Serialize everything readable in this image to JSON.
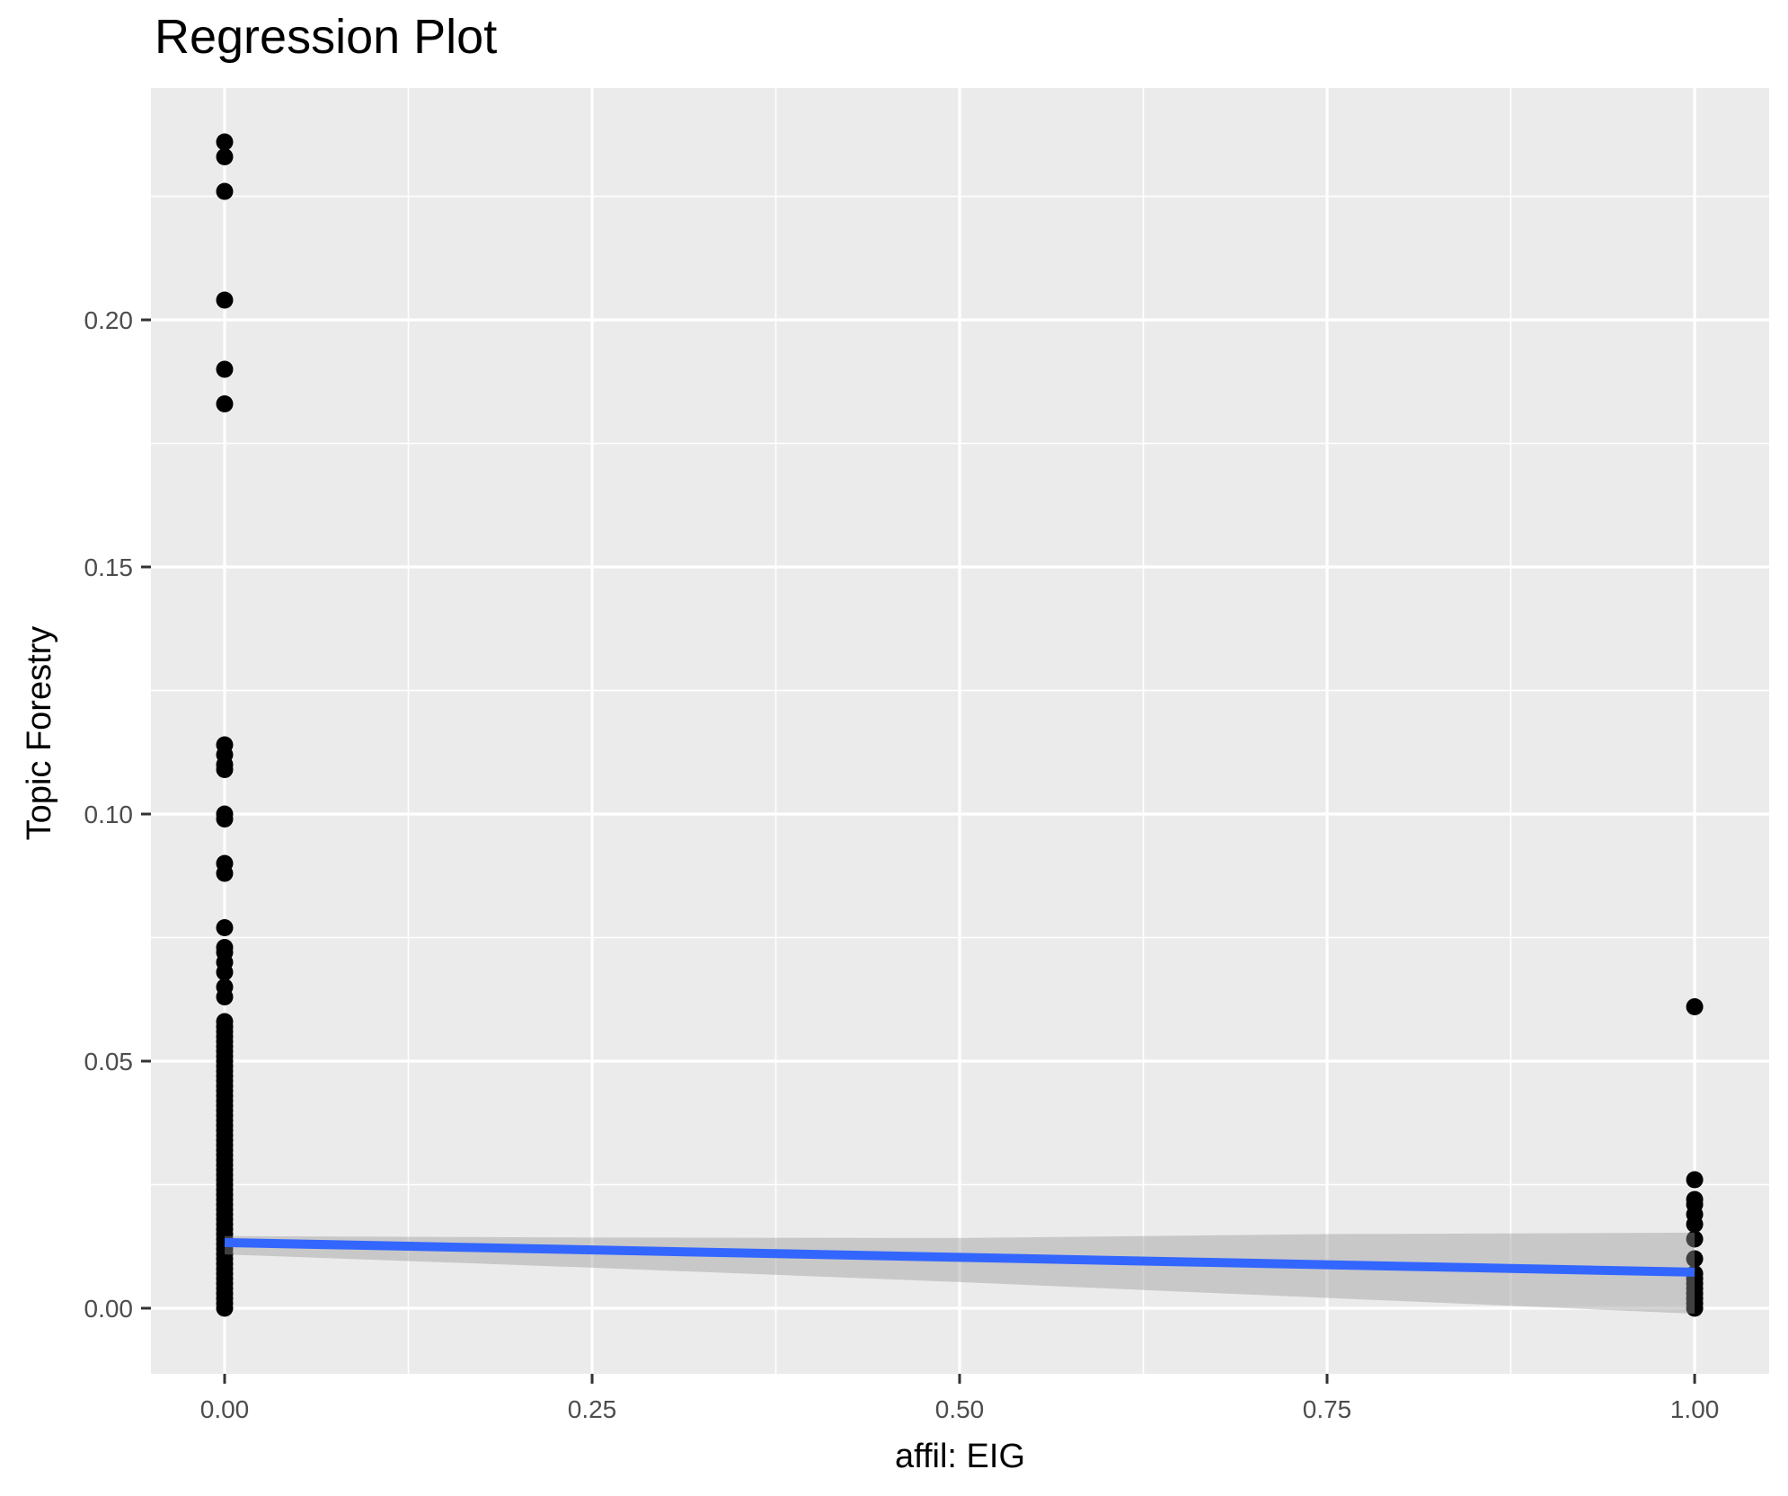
{
  "figure": {
    "title": "Regression Plot",
    "background_color": "#FFFFFF"
  },
  "chart_data": {
    "type": "scatter",
    "title": "Regression Plot",
    "xlabel": "affil: EIG",
    "ylabel": "Topic Forestry",
    "legend": "none",
    "grid": {
      "panel_background": "#EBEBEB",
      "major_color": "#FFFFFF",
      "minor_color": "#FFFFFF",
      "major_on": true,
      "minor_on": true
    },
    "xlim": [
      -0.0501,
      1.0507
    ],
    "ylim": [
      -0.01327,
      0.24691
    ],
    "x_ticks": {
      "values": [
        0,
        0.25,
        0.5,
        0.75,
        1.0
      ],
      "labels": [
        "0.00",
        "0.25",
        "0.50",
        "0.75",
        "1.00"
      ]
    },
    "y_ticks": {
      "values": [
        0,
        0.05,
        0.1,
        0.15,
        0.2
      ],
      "labels": [
        "0.00",
        "0.05",
        "0.10",
        "0.15",
        "0.20"
      ]
    },
    "x_minor": [
      0.125,
      0.375,
      0.625,
      0.875
    ],
    "y_minor": [
      0.025,
      0.075,
      0.125,
      0.175,
      0.225
    ],
    "point_color": "#000000",
    "point_groups": [
      {
        "x": 0,
        "y": [
          0.236,
          0.233,
          0.226,
          0.204,
          0.19,
          0.183,
          0.114,
          0.112,
          0.11,
          0.109,
          0.1,
          0.099,
          0.09,
          0.088,
          0.077,
          0.073,
          0.072,
          0.07,
          0.068,
          0.065,
          0.063,
          0.058,
          0.057,
          0.056,
          0.055,
          0.054,
          0.053,
          0.052,
          0.051,
          0.05,
          0.049,
          0.048,
          0.047,
          0.046,
          0.045,
          0.044,
          0.043,
          0.042,
          0.041,
          0.04,
          0.039,
          0.038,
          0.037,
          0.036,
          0.035,
          0.034,
          0.033,
          0.032,
          0.031,
          0.03,
          0.029,
          0.028,
          0.027,
          0.026,
          0.025,
          0.024,
          0.023,
          0.022,
          0.021,
          0.02,
          0.019,
          0.018,
          0.017,
          0.016,
          0.015,
          0.014,
          0.013,
          0.012,
          0.011,
          0.01,
          0.009,
          0.008,
          0.007,
          0.006,
          0.005,
          0.004,
          0.003,
          0.002,
          0.001,
          0.0
        ]
      },
      {
        "x": 1,
        "y": [
          0.061,
          0.026,
          0.022,
          0.021,
          0.019,
          0.017,
          0.014,
          0.01,
          0.007,
          0.006,
          0.005,
          0.004,
          0.003,
          0.002,
          0.001,
          0.0
        ]
      }
    ],
    "regression_line": {
      "color": "#3366FF",
      "x": [
        0,
        1
      ],
      "y": [
        0.0133,
        0.0073
      ]
    },
    "ci_ribbon": {
      "color": "rgba(153,153,153,0.42)",
      "x": [
        0,
        0.25,
        0.5,
        0.75,
        1
      ],
      "upper": [
        0.0146,
        0.0143,
        0.0142,
        0.015,
        0.0153
      ],
      "lower": [
        0.0109,
        0.0082,
        0.0053,
        0.0021,
        -0.0011
      ]
    },
    "tick_style": {
      "color": "#333333",
      "label_color": "#4D4D4D"
    }
  }
}
